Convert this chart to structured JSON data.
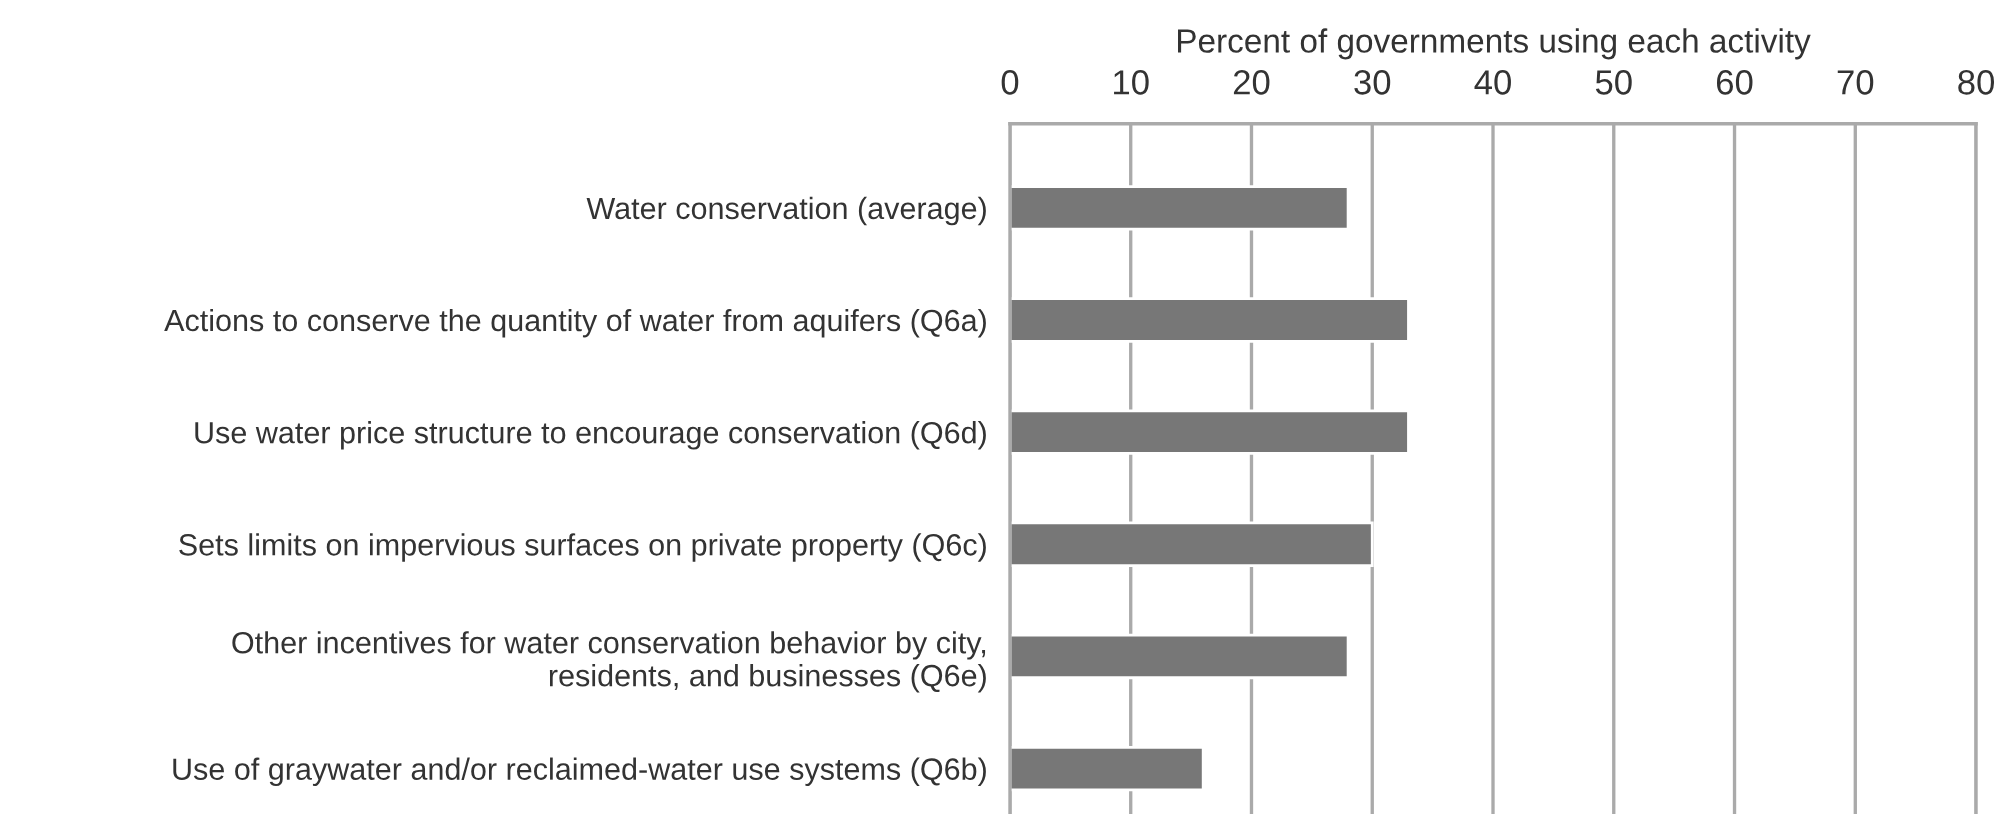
{
  "chart_data": {
    "type": "bar",
    "orientation": "horizontal",
    "xlabel": "Percent of governments using each activity",
    "categories": [
      "Water conservation (average)",
      "Actions to conserve the quantity of water from aquifers (Q6a)",
      "Use water price structure to encourage conservation (Q6d)",
      "Sets limits on impervious surfaces on private property (Q6c)",
      "Other incentives for water conservation behavior by city,\nresidents, and businesses (Q6e)",
      "Use of graywater and/or reclaimed-water use systems (Q6b)"
    ],
    "values": [
      28,
      33,
      33,
      30,
      28,
      16
    ],
    "color": "#777777",
    "xlim": [
      0,
      80
    ],
    "xticks": [
      0,
      10,
      20,
      30,
      40,
      50,
      60,
      70,
      80
    ],
    "grid": "x"
  }
}
